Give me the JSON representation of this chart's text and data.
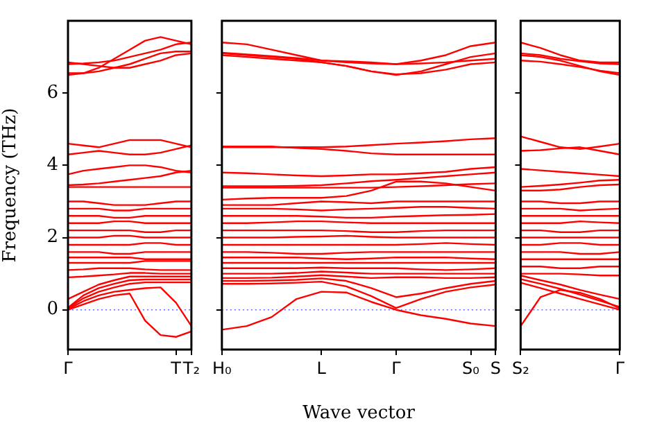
{
  "chart_data": [
    {
      "type": "line",
      "ylabel": "Frequency (THz)",
      "categories": [
        "Γ",
        null,
        null,
        null,
        null,
        null,
        null,
        "T",
        "T₂"
      ],
      "ylim": [
        -1.1,
        8
      ],
      "yticks": [
        0,
        2,
        4,
        6
      ],
      "marker": "none",
      "line_style": "solid",
      "legend": false,
      "ref_lines": [
        {
          "axis": "y",
          "value": 0,
          "color": "#6a6aff",
          "line_style": "dotted"
        }
      ],
      "series": [
        {
          "color": "#ff0000",
          "values": [
            6.5,
            6.55,
            6.7,
            6.95,
            7.2,
            7.45,
            7.55,
            7.45,
            7.35
          ]
        },
        {
          "color": "#ff0000",
          "values": [
            6.55,
            6.55,
            6.6,
            6.7,
            6.8,
            6.95,
            7.1,
            7.15,
            7.15
          ]
        },
        {
          "color": "#ff0000",
          "values": [
            6.8,
            6.82,
            6.85,
            6.9,
            7.0,
            7.1,
            7.2,
            7.35,
            7.4
          ]
        },
        {
          "color": "#ff0000",
          "values": [
            6.85,
            6.8,
            6.75,
            6.7,
            6.7,
            6.8,
            6.9,
            7.05,
            7.1
          ]
        },
        {
          "color": "#ff0000",
          "values": [
            4.6,
            4.55,
            4.5,
            4.6,
            4.7,
            4.7,
            4.7,
            4.6,
            4.5
          ]
        },
        {
          "color": "#ff0000",
          "values": [
            4.3,
            4.35,
            4.4,
            4.35,
            4.3,
            4.3,
            4.35,
            4.45,
            4.55
          ]
        },
        {
          "color": "#ff0000",
          "values": [
            3.75,
            3.85,
            3.9,
            3.95,
            4.0,
            4.0,
            3.95,
            3.85,
            3.8
          ]
        },
        {
          "color": "#ff0000",
          "values": [
            3.45,
            3.47,
            3.5,
            3.55,
            3.6,
            3.65,
            3.7,
            3.8,
            3.85
          ]
        },
        {
          "color": "#ff0000",
          "values": [
            3.4,
            3.4,
            3.4,
            3.4,
            3.4,
            3.4,
            3.4,
            3.4,
            3.4
          ]
        },
        {
          "color": "#ff0000",
          "values": [
            3.0,
            3.0,
            2.95,
            2.9,
            2.9,
            2.9,
            2.95,
            3.0,
            3.0
          ]
        },
        {
          "color": "#ff0000",
          "values": [
            2.8,
            2.8,
            2.8,
            2.75,
            2.75,
            2.8,
            2.8,
            2.8,
            2.8
          ]
        },
        {
          "color": "#ff0000",
          "values": [
            2.6,
            2.6,
            2.6,
            2.55,
            2.55,
            2.6,
            2.6,
            2.6,
            2.6
          ]
        },
        {
          "color": "#ff0000",
          "values": [
            2.4,
            2.4,
            2.4,
            2.45,
            2.45,
            2.4,
            2.4,
            2.4,
            2.4
          ]
        },
        {
          "color": "#ff0000",
          "values": [
            2.2,
            2.2,
            2.2,
            2.2,
            2.2,
            2.15,
            2.15,
            2.2,
            2.2
          ]
        },
        {
          "color": "#ff0000",
          "values": [
            2.0,
            2.0,
            2.0,
            2.05,
            2.05,
            2.0,
            2.0,
            2.0,
            2.0
          ]
        },
        {
          "color": "#ff0000",
          "values": [
            1.8,
            1.8,
            1.8,
            1.8,
            1.8,
            1.85,
            1.85,
            1.8,
            1.8
          ]
        },
        {
          "color": "#ff0000",
          "values": [
            1.6,
            1.6,
            1.6,
            1.55,
            1.55,
            1.6,
            1.6,
            1.6,
            1.6
          ]
        },
        {
          "color": "#ff0000",
          "values": [
            1.45,
            1.45,
            1.45,
            1.45,
            1.45,
            1.4,
            1.4,
            1.4,
            1.4
          ]
        },
        {
          "color": "#ff0000",
          "values": [
            1.3,
            1.3,
            1.3,
            1.3,
            1.3,
            1.35,
            1.35,
            1.35,
            1.35
          ]
        },
        {
          "color": "#ff0000",
          "values": [
            1.1,
            1.12,
            1.15,
            1.15,
            1.15,
            1.12,
            1.1,
            1.1,
            1.1
          ]
        },
        {
          "color": "#ff0000",
          "values": [
            0.9,
            0.92,
            0.95,
            0.98,
            1.02,
            1.02,
            1.0,
            1.0,
            1.0
          ]
        },
        {
          "color": "#ff0000",
          "values": [
            0.3,
            0.5,
            0.7,
            0.82,
            0.92,
            0.92,
            0.92,
            0.92,
            0.92
          ]
        },
        {
          "color": "#ff0000",
          "values": [
            0.06,
            0.4,
            0.6,
            0.72,
            0.82,
            0.84,
            0.84,
            0.84,
            0.84
          ]
        },
        {
          "color": "#ff0000",
          "values": [
            0.04,
            0.32,
            0.5,
            0.62,
            0.72,
            0.76,
            0.76,
            0.76,
            0.76
          ]
        },
        {
          "color": "#ff0000",
          "values": [
            0.02,
            0.24,
            0.4,
            0.5,
            0.55,
            0.6,
            0.62,
            0.2,
            -0.45
          ]
        },
        {
          "color": "#ff0000",
          "values": [
            0,
            0.15,
            0.3,
            0.4,
            0.45,
            -0.3,
            -0.7,
            -0.75,
            -0.6
          ]
        }
      ]
    },
    {
      "type": "line",
      "xlabel": "Wave vector",
      "categories": [
        "H₀",
        null,
        null,
        null,
        "L",
        null,
        null,
        "Γ",
        null,
        null,
        "S₀",
        "S"
      ],
      "ylim": [
        -1.1,
        8
      ],
      "yticks": [
        {
          "value": 0,
          "label": null
        },
        {
          "value": 2,
          "label": null
        },
        {
          "value": 4,
          "label": null
        },
        {
          "value": 6,
          "label": null
        }
      ],
      "tick_labels": "x",
      "marker": "none",
      "line_style": "solid",
      "legend": false,
      "ref_lines": [
        {
          "axis": "y",
          "value": 0,
          "color": "#6a6aff",
          "line_style": "dotted"
        }
      ],
      "series": [
        {
          "color": "#ff0000",
          "values": [
            7.4,
            7.35,
            7.2,
            7.05,
            6.9,
            6.85,
            6.82,
            6.8,
            6.9,
            7.05,
            7.3,
            7.4
          ]
        },
        {
          "color": "#ff0000",
          "values": [
            7.1,
            7.05,
            7.0,
            6.95,
            6.85,
            6.75,
            6.6,
            6.5,
            6.6,
            6.8,
            7.0,
            7.1
          ]
        },
        {
          "color": "#ff0000",
          "values": [
            7.12,
            7.07,
            7.02,
            6.97,
            6.9,
            6.88,
            6.85,
            6.8,
            6.82,
            6.85,
            6.9,
            6.95
          ]
        },
        {
          "color": "#ff0000",
          "values": [
            7.05,
            7.0,
            6.95,
            6.9,
            6.85,
            6.75,
            6.6,
            6.52,
            6.55,
            6.65,
            6.8,
            6.85
          ]
        },
        {
          "color": "#ff0000",
          "values": [
            4.5,
            4.5,
            4.5,
            4.5,
            4.5,
            4.52,
            4.56,
            4.6,
            4.63,
            4.67,
            4.72,
            4.75
          ]
        },
        {
          "color": "#ff0000",
          "values": [
            4.52,
            4.52,
            4.52,
            4.48,
            4.45,
            4.4,
            4.33,
            4.3,
            4.3,
            4.3,
            4.3,
            4.3
          ]
        },
        {
          "color": "#ff0000",
          "values": [
            3.8,
            3.78,
            3.75,
            3.72,
            3.7,
            3.72,
            3.75,
            3.75,
            3.78,
            3.82,
            3.9,
            3.95
          ]
        },
        {
          "color": "#ff0000",
          "values": [
            3.42,
            3.42,
            3.42,
            3.43,
            3.45,
            3.5,
            3.56,
            3.6,
            3.65,
            3.7,
            3.75,
            3.8
          ]
        },
        {
          "color": "#ff0000",
          "values": [
            3.38,
            3.38,
            3.38,
            3.38,
            3.38,
            3.38,
            3.38,
            3.4,
            3.42,
            3.45,
            3.48,
            3.5
          ]
        },
        {
          "color": "#ff0000",
          "values": [
            3.05,
            3.08,
            3.1,
            3.1,
            3.1,
            3.15,
            3.3,
            3.55,
            3.55,
            3.5,
            3.4,
            3.3
          ]
        },
        {
          "color": "#ff0000",
          "values": [
            2.9,
            2.9,
            2.9,
            2.95,
            3.0,
            2.98,
            2.95,
            3.0,
            3.0,
            3.0,
            3.0,
            3.0
          ]
        },
        {
          "color": "#ff0000",
          "values": [
            2.8,
            2.8,
            2.8,
            2.78,
            2.75,
            2.78,
            2.8,
            2.82,
            2.85,
            2.85,
            2.82,
            2.8
          ]
        },
        {
          "color": "#ff0000",
          "values": [
            2.6,
            2.6,
            2.6,
            2.6,
            2.58,
            2.55,
            2.55,
            2.58,
            2.6,
            2.62,
            2.63,
            2.65
          ]
        },
        {
          "color": "#ff0000",
          "values": [
            2.4,
            2.4,
            2.42,
            2.45,
            2.45,
            2.42,
            2.4,
            2.4,
            2.4,
            2.4,
            2.4,
            2.4
          ]
        },
        {
          "color": "#ff0000",
          "values": [
            2.2,
            2.2,
            2.2,
            2.2,
            2.2,
            2.18,
            2.15,
            2.15,
            2.18,
            2.2,
            2.2,
            2.2
          ]
        },
        {
          "color": "#ff0000",
          "values": [
            2.0,
            2.0,
            2.0,
            2.02,
            2.03,
            2.05,
            2.02,
            2.0,
            2.0,
            2.0,
            2.0,
            2.0
          ]
        },
        {
          "color": "#ff0000",
          "values": [
            1.8,
            1.8,
            1.8,
            1.8,
            1.8,
            1.8,
            1.8,
            1.8,
            1.82,
            1.85,
            1.82,
            1.8
          ]
        },
        {
          "color": "#ff0000",
          "values": [
            1.6,
            1.6,
            1.58,
            1.55,
            1.55,
            1.58,
            1.6,
            1.6,
            1.6,
            1.6,
            1.6,
            1.6
          ]
        },
        {
          "color": "#ff0000",
          "values": [
            1.45,
            1.45,
            1.45,
            1.45,
            1.42,
            1.4,
            1.42,
            1.45,
            1.45,
            1.45,
            1.42,
            1.4
          ]
        },
        {
          "color": "#ff0000",
          "values": [
            1.3,
            1.3,
            1.3,
            1.3,
            1.3,
            1.3,
            1.3,
            1.3,
            1.3,
            1.3,
            1.3,
            1.3
          ]
        },
        {
          "color": "#ff0000",
          "values": [
            1.15,
            1.15,
            1.15,
            1.15,
            1.17,
            1.15,
            1.15,
            1.15,
            1.12,
            1.1,
            1.12,
            1.15
          ]
        },
        {
          "color": "#ff0000",
          "values": [
            1.0,
            1.0,
            1.0,
            1.02,
            1.06,
            1.03,
            1.0,
            1.0,
            1.0,
            1.0,
            1.0,
            1.0
          ]
        },
        {
          "color": "#ff0000",
          "values": [
            0.88,
            0.88,
            0.89,
            0.92,
            0.96,
            0.92,
            0.88,
            0.9,
            0.9,
            0.88,
            0.88,
            0.9
          ]
        },
        {
          "color": "#ff0000",
          "values": [
            0.8,
            0.8,
            0.81,
            0.83,
            0.87,
            0.8,
            0.6,
            0.35,
            0.45,
            0.6,
            0.72,
            0.8
          ]
        },
        {
          "color": "#ff0000",
          "values": [
            0.72,
            0.72,
            0.73,
            0.75,
            0.78,
            0.65,
            0.38,
            0.05,
            0.3,
            0.5,
            0.62,
            0.7
          ]
        },
        {
          "color": "#ff0000",
          "values": [
            -0.55,
            -0.45,
            -0.2,
            0.3,
            0.5,
            0.48,
            0.22,
            0,
            -0.15,
            -0.25,
            -0.38,
            -0.45
          ]
        }
      ]
    },
    {
      "type": "line",
      "categories": [
        "S₂",
        null,
        null,
        null,
        null,
        "Γ"
      ],
      "ylim": [
        -1.1,
        8
      ],
      "yticks": [
        {
          "value": 0,
          "label": null
        },
        {
          "value": 2,
          "label": null
        },
        {
          "value": 4,
          "label": null
        },
        {
          "value": 6,
          "label": null
        }
      ],
      "tick_labels": "x",
      "marker": "none",
      "line_style": "solid",
      "legend": false,
      "ref_lines": [
        {
          "axis": "y",
          "value": 0,
          "color": "#6a6aff",
          "line_style": "dotted"
        }
      ],
      "series": [
        {
          "color": "#ff0000",
          "values": [
            7.4,
            7.25,
            7.05,
            6.9,
            6.85,
            6.85
          ]
        },
        {
          "color": "#ff0000",
          "values": [
            7.1,
            7.05,
            6.95,
            6.88,
            6.82,
            6.8
          ]
        },
        {
          "color": "#ff0000",
          "values": [
            7.05,
            7.0,
            6.9,
            6.75,
            6.6,
            6.5
          ]
        },
        {
          "color": "#ff0000",
          "values": [
            6.9,
            6.87,
            6.8,
            6.72,
            6.62,
            6.55
          ]
        },
        {
          "color": "#ff0000",
          "values": [
            4.8,
            4.65,
            4.5,
            4.45,
            4.52,
            4.6
          ]
        },
        {
          "color": "#ff0000",
          "values": [
            4.4,
            4.42,
            4.47,
            4.5,
            4.4,
            4.3
          ]
        },
        {
          "color": "#ff0000",
          "values": [
            3.9,
            3.86,
            3.82,
            3.78,
            3.74,
            3.7
          ]
        },
        {
          "color": "#ff0000",
          "values": [
            3.4,
            3.43,
            3.47,
            3.52,
            3.58,
            3.6
          ]
        },
        {
          "color": "#ff0000",
          "values": [
            3.3,
            3.3,
            3.33,
            3.4,
            3.45,
            3.47
          ]
        },
        {
          "color": "#ff0000",
          "values": [
            3.0,
            3.0,
            2.95,
            2.95,
            3.0,
            3.0
          ]
        },
        {
          "color": "#ff0000",
          "values": [
            2.8,
            2.8,
            2.8,
            2.75,
            2.78,
            2.8
          ]
        },
        {
          "color": "#ff0000",
          "values": [
            2.6,
            2.6,
            2.6,
            2.6,
            2.6,
            2.6
          ]
        },
        {
          "color": "#ff0000",
          "values": [
            2.4,
            2.4,
            2.4,
            2.45,
            2.42,
            2.4
          ]
        },
        {
          "color": "#ff0000",
          "values": [
            2.2,
            2.2,
            2.15,
            2.15,
            2.2,
            2.2
          ]
        },
        {
          "color": "#ff0000",
          "values": [
            2.0,
            2.0,
            2.0,
            2.0,
            2.0,
            2.0
          ]
        },
        {
          "color": "#ff0000",
          "values": [
            1.8,
            1.8,
            1.85,
            1.85,
            1.8,
            1.8
          ]
        },
        {
          "color": "#ff0000",
          "values": [
            1.6,
            1.6,
            1.6,
            1.55,
            1.55,
            1.6
          ]
        },
        {
          "color": "#ff0000",
          "values": [
            1.4,
            1.4,
            1.4,
            1.4,
            1.4,
            1.4
          ]
        },
        {
          "color": "#ff0000",
          "values": [
            1.2,
            1.2,
            1.15,
            1.15,
            1.2,
            1.2
          ]
        },
        {
          "color": "#ff0000",
          "values": [
            1.0,
            1.0,
            1.0,
            0.98,
            0.95,
            0.95
          ]
        },
        {
          "color": "#ff0000",
          "values": [
            0.85,
            0.72,
            0.58,
            0.42,
            0.25,
            0.08
          ]
        },
        {
          "color": "#ff0000",
          "values": [
            0.75,
            0.6,
            0.45,
            0.3,
            0.15,
            0.0
          ]
        },
        {
          "color": "#ff0000",
          "values": [
            0.95,
            0.82,
            0.7,
            0.55,
            0.42,
            0.3
          ]
        },
        {
          "color": "#ff0000",
          "values": [
            -0.45,
            0.35,
            0.55,
            0.47,
            0.3,
            0.04
          ]
        }
      ]
    }
  ]
}
